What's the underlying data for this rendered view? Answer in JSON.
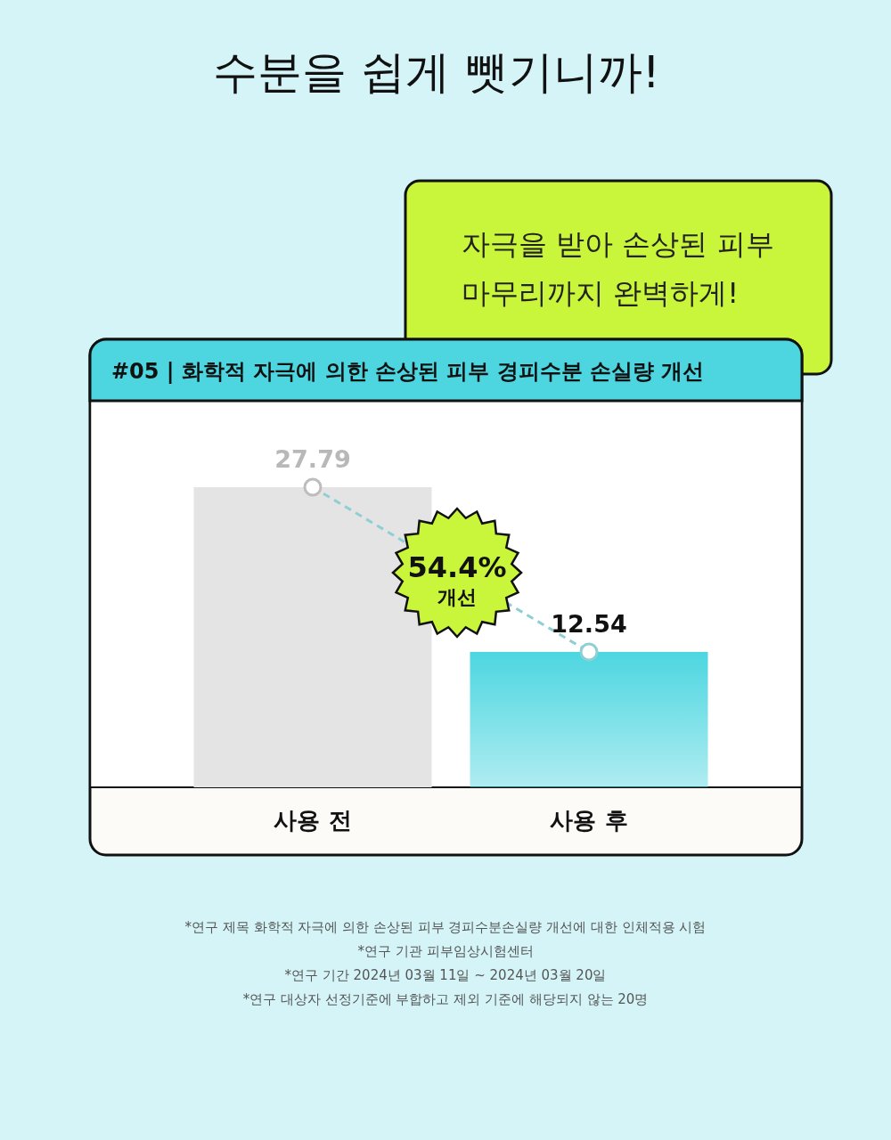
{
  "chart_data": {
    "type": "bar",
    "title": "#05 | 화학적 자극에 의한 손상된 피부 경피수분 손실량 개선",
    "subtitle": "수분을 쉽게 뺏기니까!",
    "categories": [
      "사용 전",
      "사용 후"
    ],
    "series": [
      {
        "colors": [
          "#e4e4e4",
          "#4dd6e0"
        ],
        "values": [
          27.79,
          12.54
        ]
      },
      {
        "type": "line",
        "color": "#8fcfd4",
        "line_style": "dashed",
        "marker": "circle",
        "values": [
          27.79,
          12.54
        ],
        "value_labels": [
          "27.79",
          "12.54"
        ]
      }
    ],
    "annotations": [
      "자극을 받아 손상된 피부",
      "마무리까지 완벽하게!",
      "54.4% 개선",
      "*연구 제목 화학적 자극에 의한 손상된 피부 경피수분손실량 개선에 대한 인체적용 시험",
      "*연구 기관 피부임상시험센터",
      "*연구 기간 2024년 03월 11일 ~ 2024년 03월 20일",
      "*연구 대상자 선정기준에 부합하고 제외 기준에 해당되지 않는 20명"
    ]
  }
}
